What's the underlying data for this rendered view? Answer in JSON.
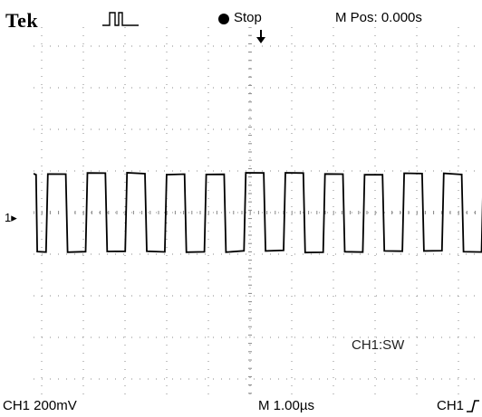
{
  "header": {
    "brand": "Tek",
    "acquisition_state": "Stop",
    "horizontal_position": "M Pos: 0.000s"
  },
  "footer": {
    "channel_scale": "CH1  200mV",
    "timebase": "M 1.00µs",
    "trigger_source": "CH1"
  },
  "display": {
    "channel_marker": "1",
    "channel_annotation": "CH1:SW",
    "trace_color": "#000000",
    "grid_color": "#888888",
    "background": "#ffffff"
  },
  "icons": {
    "trigger_status": "pulse-trigger-icon",
    "run_indicator": "stop-dot-icon",
    "trigger_position": "down-arrow-icon",
    "trigger_slope": "rising-edge-icon",
    "ground_marker": "right-arrow-icon"
  },
  "waveform": {
    "type": "square",
    "high_level_div": 1.1,
    "low_level_div": -1.1,
    "period_div": 0.95,
    "duty": 0.5,
    "first_rise_div": 0.3,
    "cycles_visible": 11
  }
}
